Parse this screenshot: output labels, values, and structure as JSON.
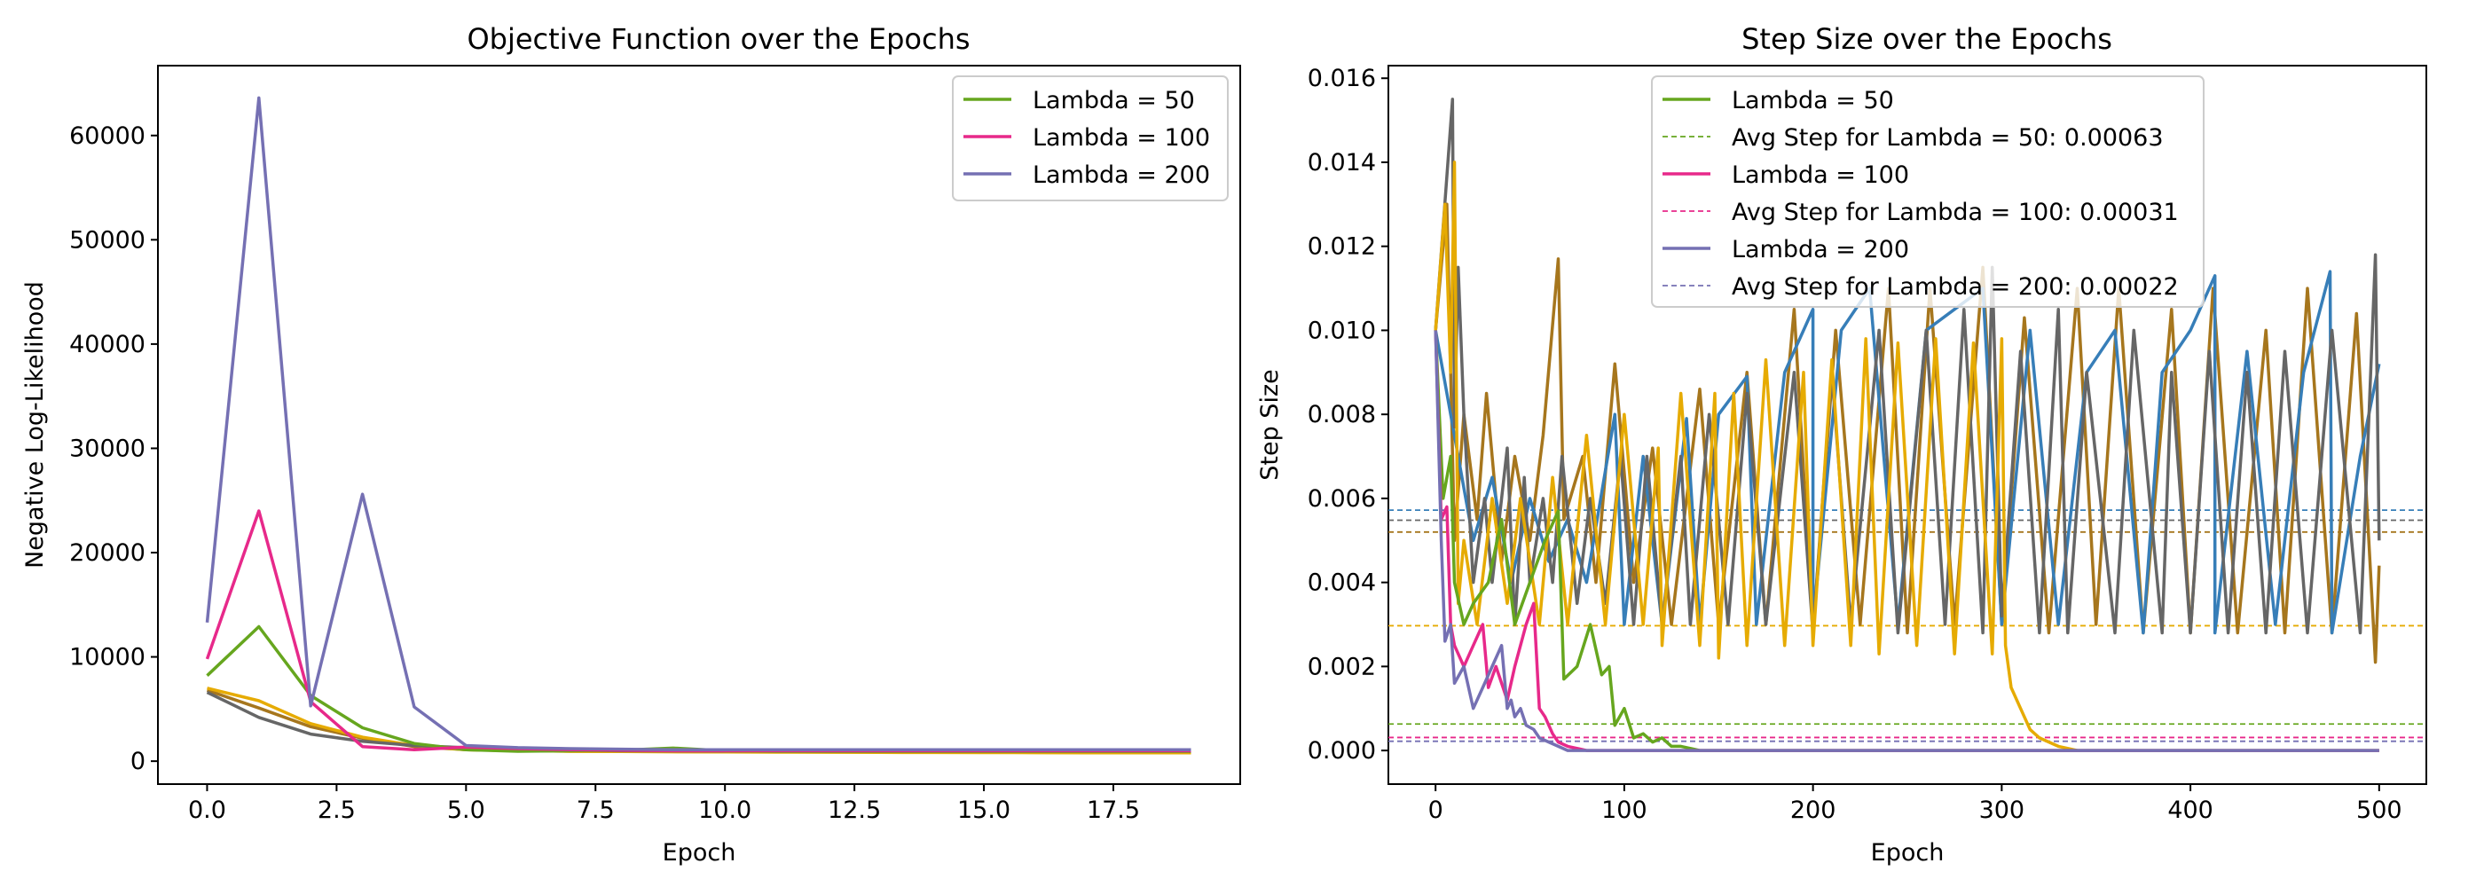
{
  "chart_data": [
    {
      "type": "line",
      "title": "Objective Function over the Epochs",
      "xlabel": "Epoch",
      "ylabel": "Negative Log-Likelihood",
      "xlim": [
        -0.95,
        19.95
      ],
      "ylim": [
        -2200,
        66700
      ],
      "x_ticks": [
        0.0,
        2.5,
        5.0,
        7.5,
        10.0,
        12.5,
        15.0,
        17.5
      ],
      "x_tick_labels": [
        "0.0",
        "2.5",
        "5.0",
        "7.5",
        "10.0",
        "12.5",
        "15.0",
        "17.5"
      ],
      "y_ticks": [
        0,
        10000,
        20000,
        30000,
        40000,
        50000,
        60000
      ],
      "y_tick_labels": [
        "0",
        "10000",
        "20000",
        "30000",
        "40000",
        "50000",
        "60000"
      ],
      "grid": false,
      "legend_position": "top-right",
      "legend": [
        "Lambda = 50",
        "Lambda = 100",
        "Lambda = 200"
      ],
      "x": [
        0,
        1,
        2,
        3,
        4,
        5,
        6,
        7,
        8,
        9,
        10,
        11,
        12,
        13,
        14,
        15,
        16,
        17,
        18,
        19
      ],
      "series": [
        {
          "name": "",
          "color": "#a6761d",
          "values": [
            6800,
            5100,
            3300,
            2200,
            1400,
            1100,
            1000,
            950,
            930,
            920,
            900,
            890,
            880,
            870,
            860,
            850,
            845,
            840,
            835,
            830
          ]
        },
        {
          "name": "",
          "color": "#e6ab02",
          "values": [
            7000,
            5800,
            3600,
            2300,
            1500,
            1100,
            1000,
            950,
            920,
            900,
            880,
            860,
            850,
            840,
            830,
            820,
            810,
            800,
            800,
            800
          ]
        },
        {
          "name": "",
          "color": "#666666",
          "values": [
            6600,
            4200,
            2600,
            1900,
            1500,
            1300,
            1150,
            1050,
            1000,
            980,
            970,
            960,
            950,
            950,
            950,
            950,
            950,
            950,
            950,
            950
          ]
        },
        {
          "name": "Lambda = 50",
          "color": "#66a61e",
          "values": [
            8200,
            12900,
            6300,
            3200,
            1700,
            1100,
            950,
            1000,
            1050,
            1250,
            1000,
            950,
            950,
            950,
            950,
            950,
            950,
            950,
            950,
            950
          ]
        },
        {
          "name": "Lambda = 100",
          "color": "#e7298a",
          "values": [
            9800,
            24000,
            5700,
            1400,
            1100,
            1350,
            1200,
            1100,
            1050,
            1000,
            1000,
            1000,
            1000,
            1000,
            1000,
            1000,
            1000,
            1000,
            1000,
            1000
          ]
        },
        {
          "name": "Lambda = 200",
          "color": "#7570b3",
          "values": [
            13300,
            63600,
            5300,
            25600,
            5200,
            1500,
            1300,
            1200,
            1150,
            1100,
            1100,
            1100,
            1100,
            1100,
            1100,
            1100,
            1100,
            1100,
            1100,
            1100
          ]
        }
      ]
    },
    {
      "type": "line",
      "title": "Step Size over the Epochs",
      "xlabel": "Epoch",
      "ylabel": "Step Size",
      "xlim": [
        -25,
        525
      ],
      "ylim": [
        -0.0008,
        0.0163
      ],
      "x_ticks": [
        0,
        100,
        200,
        300,
        400,
        500
      ],
      "x_tick_labels": [
        "0",
        "100",
        "200",
        "300",
        "400",
        "500"
      ],
      "y_ticks": [
        0,
        0.002,
        0.004,
        0.006,
        0.008,
        0.01,
        0.012,
        0.014,
        0.016
      ],
      "y_tick_labels": [
        "0.000",
        "0.002",
        "0.004",
        "0.006",
        "0.008",
        "0.010",
        "0.012",
        "0.014",
        "0.016"
      ],
      "grid": false,
      "legend_position": "top-center",
      "legend": [
        {
          "label": "Lambda = 50",
          "style": "solid",
          "color": "#66a61e"
        },
        {
          "label": "Avg Step for Lambda = 50: 0.00063",
          "style": "dashed",
          "color": "#66a61e"
        },
        {
          "label": "Lambda = 100",
          "style": "solid",
          "color": "#e7298a"
        },
        {
          "label": "Avg Step for Lambda = 100: 0.00031",
          "style": "dashed",
          "color": "#e7298a"
        },
        {
          "label": "Lambda = 200",
          "style": "solid",
          "color": "#7570b3"
        },
        {
          "label": "Avg Step for Lambda = 200: 0.00022",
          "style": "dashed",
          "color": "#7570b3"
        }
      ],
      "hlines": [
        {
          "y": 0.00572,
          "color": "#377eb8"
        },
        {
          "y": 0.00548,
          "color": "#666666"
        },
        {
          "y": 0.0052,
          "color": "#a6761d"
        },
        {
          "y": 0.00297,
          "color": "#e6ab02"
        },
        {
          "y": 0.00063,
          "color": "#66a61e"
        },
        {
          "y": 0.00031,
          "color": "#e7298a"
        },
        {
          "y": 0.00022,
          "color": "#7570b3"
        }
      ],
      "series": [
        {
          "name": "",
          "color": "#a6761d",
          "x": [
            0,
            6,
            10,
            15,
            22,
            27,
            35,
            42,
            50,
            57,
            65,
            68,
            78,
            85,
            95,
            105,
            115,
            125,
            140,
            150,
            165,
            175,
            190,
            200,
            212,
            225,
            240,
            250,
            262,
            275,
            290,
            300,
            312,
            325,
            340,
            350,
            362,
            375,
            390,
            400,
            412,
            425,
            440,
            450,
            462,
            475,
            488,
            498,
            500
          ],
          "values": [
            0.01,
            0.013,
            0.005,
            0.008,
            0.0055,
            0.0085,
            0.0045,
            0.007,
            0.005,
            0.0075,
            0.0117,
            0.0055,
            0.007,
            0.004,
            0.0092,
            0.004,
            0.0072,
            0.003,
            0.0086,
            0.003,
            0.009,
            0.003,
            0.0105,
            0.0028,
            0.01,
            0.003,
            0.011,
            0.0028,
            0.011,
            0.003,
            0.0115,
            0.003,
            0.0103,
            0.0028,
            0.011,
            0.003,
            0.011,
            0.0028,
            0.0105,
            0.0028,
            0.011,
            0.0028,
            0.01,
            0.0028,
            0.011,
            0.0028,
            0.0104,
            0.0021,
            0.0044
          ]
        },
        {
          "name": "",
          "color": "#377eb8",
          "x": [
            0,
            20,
            30,
            40,
            50,
            60,
            70,
            80,
            95,
            100,
            110,
            120,
            133,
            140,
            150,
            165,
            170,
            185,
            200,
            200,
            215,
            230,
            245,
            260,
            275,
            290,
            300,
            315,
            330,
            345,
            360,
            375,
            385,
            400,
            413,
            413,
            430,
            445,
            460,
            474,
            475,
            490,
            500
          ],
          "values": [
            0.01,
            0.005,
            0.0065,
            0.004,
            0.006,
            0.0045,
            0.0055,
            0.004,
            0.008,
            0.003,
            0.007,
            0.003,
            0.0079,
            0.003,
            0.008,
            0.0089,
            0.003,
            0.009,
            0.0105,
            0.003,
            0.01,
            0.011,
            0.003,
            0.01,
            0.0105,
            0.011,
            0.003,
            0.01,
            0.003,
            0.009,
            0.01,
            0.0028,
            0.009,
            0.01,
            0.0113,
            0.0028,
            0.0095,
            0.003,
            0.009,
            0.0114,
            0.0028,
            0.007,
            0.0092
          ]
        },
        {
          "name": "",
          "color": "#666666",
          "x": [
            0,
            9,
            10,
            12,
            15,
            20,
            26,
            30,
            38,
            42,
            47,
            50,
            57,
            62,
            67,
            75,
            82,
            90,
            98,
            105,
            112,
            120,
            130,
            135,
            145,
            155,
            165,
            175,
            190,
            200,
            210,
            220,
            235,
            245,
            260,
            270,
            280,
            290,
            295,
            300,
            310,
            320,
            330,
            335,
            345,
            360,
            370,
            385,
            390,
            400,
            410,
            420,
            430,
            440,
            450,
            462,
            475,
            490,
            498,
            500
          ],
          "values": [
            0.01,
            0.0155,
            0.0077,
            0.0115,
            0.008,
            0.004,
            0.006,
            0.004,
            0.0072,
            0.003,
            0.0065,
            0.004,
            0.006,
            0.004,
            0.007,
            0.0035,
            0.006,
            0.0035,
            0.007,
            0.003,
            0.007,
            0.003,
            0.007,
            0.003,
            0.008,
            0.003,
            0.0085,
            0.003,
            0.009,
            0.0028,
            0.009,
            0.003,
            0.01,
            0.0028,
            0.01,
            0.003,
            0.0105,
            0.0028,
            0.0115,
            0.0032,
            0.0095,
            0.0028,
            0.0105,
            0.0028,
            0.009,
            0.0028,
            0.01,
            0.0028,
            0.009,
            0.0028,
            0.0095,
            0.0028,
            0.009,
            0.0028,
            0.0095,
            0.0028,
            0.01,
            0.0028,
            0.0118,
            0.005
          ]
        },
        {
          "name": "",
          "color": "#e6ab02",
          "x": [
            0,
            5,
            8,
            10,
            12,
            15,
            22,
            30,
            38,
            45,
            55,
            62,
            70,
            80,
            90,
            100,
            110,
            118,
            120,
            130,
            140,
            148,
            150,
            158,
            165,
            175,
            185,
            195,
            200,
            210,
            220,
            228,
            235,
            245,
            255,
            265,
            275,
            285,
            295,
            300,
            302,
            305,
            310,
            315,
            320,
            330,
            340
          ],
          "values": [
            0.01,
            0.013,
            0.009,
            0.014,
            0.0035,
            0.005,
            0.003,
            0.006,
            0.0035,
            0.006,
            0.003,
            0.0065,
            0.003,
            0.0075,
            0.003,
            0.008,
            0.003,
            0.0072,
            0.0025,
            0.0085,
            0.0025,
            0.0085,
            0.0022,
            0.0085,
            0.0025,
            0.0093,
            0.0025,
            0.009,
            0.0025,
            0.0093,
            0.0025,
            0.0098,
            0.0023,
            0.0097,
            0.0025,
            0.0098,
            0.0023,
            0.0097,
            0.0023,
            0.0098,
            0.0025,
            0.0015,
            0.001,
            0.0005,
            0.0003,
            0.0001,
            0.0
          ]
        },
        {
          "name": "Lambda = 50",
          "color": "#66a61e",
          "x": [
            0,
            4,
            8,
            10,
            15,
            20,
            28,
            35,
            42,
            50,
            58,
            65,
            68,
            75,
            82,
            88,
            92,
            95,
            100,
            105,
            110,
            115,
            120,
            125,
            130,
            140,
            200,
            300,
            400,
            500
          ],
          "values": [
            0.01,
            0.006,
            0.007,
            0.004,
            0.003,
            0.0035,
            0.004,
            0.0055,
            0.003,
            0.004,
            0.005,
            0.0057,
            0.0017,
            0.002,
            0.003,
            0.0018,
            0.002,
            0.0006,
            0.001,
            0.0003,
            0.0004,
            0.0002,
            0.0003,
            0.0001,
            0.0001,
            0.0,
            0.0,
            0.0,
            0.0,
            0.0
          ]
        },
        {
          "name": "Lambda = 100",
          "color": "#e7298a",
          "x": [
            0,
            3,
            6,
            8,
            10,
            15,
            20,
            25,
            28,
            32,
            38,
            42,
            48,
            52,
            55,
            58,
            62,
            65,
            70,
            80,
            100,
            200,
            300,
            400,
            500
          ],
          "values": [
            0.01,
            0.0055,
            0.0058,
            0.003,
            0.0025,
            0.002,
            0.0025,
            0.003,
            0.0015,
            0.002,
            0.0012,
            0.002,
            0.003,
            0.0035,
            0.001,
            0.0008,
            0.0004,
            0.0002,
            0.0001,
            0.0,
            0.0,
            0.0,
            0.0,
            0.0,
            0.0
          ]
        },
        {
          "name": "Lambda = 200",
          "color": "#7570b3",
          "x": [
            0,
            3,
            5,
            8,
            10,
            15,
            20,
            25,
            30,
            35,
            38,
            40,
            42,
            45,
            48,
            52,
            55,
            60,
            65,
            70,
            80,
            100,
            200,
            300,
            400,
            500
          ],
          "values": [
            0.01,
            0.005,
            0.0026,
            0.003,
            0.0016,
            0.002,
            0.001,
            0.0015,
            0.002,
            0.0025,
            0.001,
            0.0012,
            0.0008,
            0.001,
            0.0006,
            0.0005,
            0.0003,
            0.0002,
            0.0001,
            0.0,
            0.0,
            0.0,
            0.0,
            0.0,
            0.0,
            0.0
          ]
        }
      ]
    }
  ]
}
